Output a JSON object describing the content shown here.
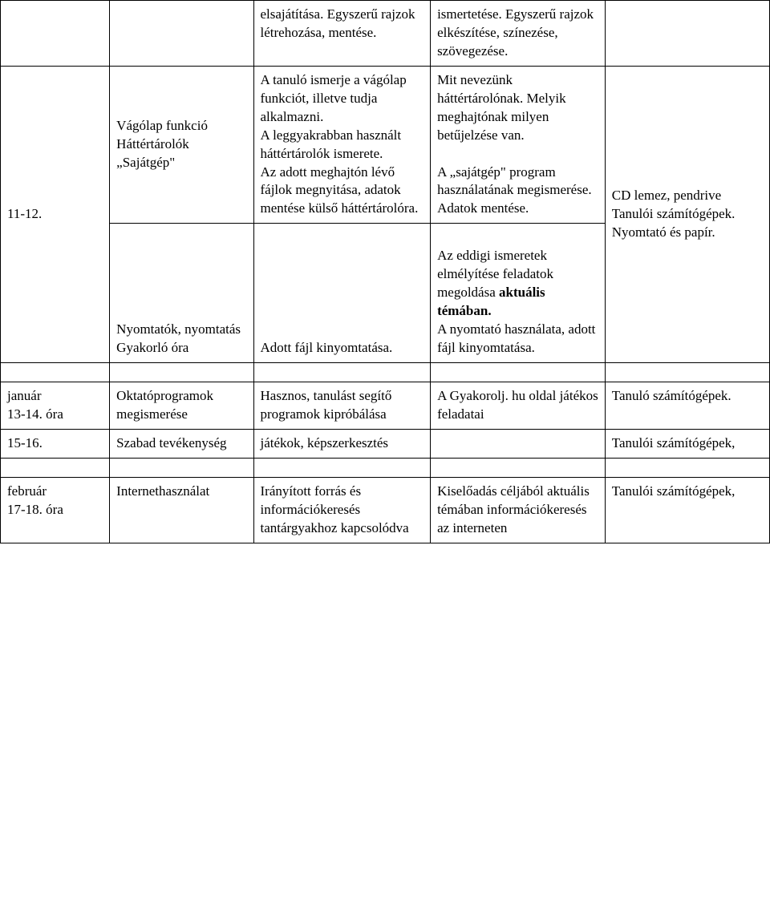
{
  "row0": {
    "c2": "elsajátítása. Egyszerű rajzok létrehozása, mentése.",
    "c3": "ismertetése. Egyszerű rajzok elkészítése, színezése, szövegezése."
  },
  "row1": {
    "c0": "11-12.",
    "c1": "  Vágólap funkció\n Háttértárolók\n „Sajátgép\"",
    "c2": "A tanuló ismerje a vágólap funkciót, illetve tudja alkalmazni.\n A leggyakrabban használt háttértárolók ismerete.\n Az adott meghajtón lévő fájlok megnyitása, adatok mentése külső háttértárolóra.",
    "c3": "Mit nevezünk háttértárolónak. Melyik meghajtónak milyen betűjelzése van.\n\nA „sajátgép\" program használatának megismerése. Adatok mentése.",
    "c4": "CD lemez, pendrive\nTanulói számítógépek. Nyomtató és papír."
  },
  "row2": {
    "c1": "Nyomtatók, nyomtatás Gyakorló óra",
    "c2": "Adott fájl kinyomtatása.",
    "c3a": "Az eddigi ismeretek elmélyítése feladatok megoldása ",
    "c3b": "aktuális témában.",
    "c3c": "\nA nyomtató használata, adott fájl kinyomtatása."
  },
  "row3": {
    "c0": "január\n13-14. óra",
    "c1": "Oktatóprogramok megismerése",
    "c2": "Hasznos, tanulást segítő programok kipróbálása",
    "c3": "A Gyakorolj. hu oldal játékos feladatai",
    "c4": "Tanuló számítógépek."
  },
  "row4": {
    "c0": "15-16.",
    "c1": "Szabad tevékenység",
    "c2": "játékok, képszerkesztés",
    "c4": "Tanulói számítógépek,"
  },
  "row5": {
    "c0": "február\n17-18. óra",
    "c1": "Internethasználat",
    "c2": "Irányított forrás és információkeresés tantárgyakhoz kapcsolódva",
    "c3": "Kiselőadás céljából aktuális témában információkeresés az interneten",
    "c4": "Tanulói számítógépek,"
  }
}
